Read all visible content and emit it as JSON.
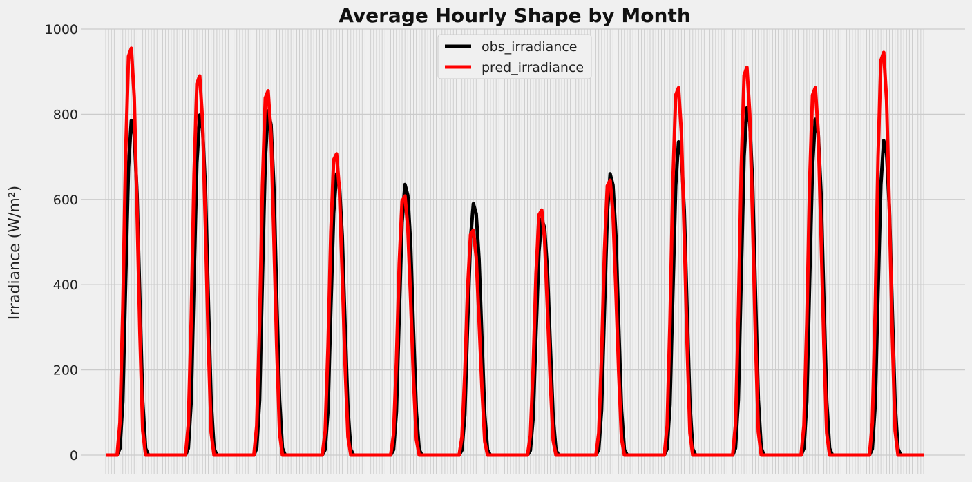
{
  "chart_data": {
    "type": "line",
    "title": "Average Hourly Shape by Month",
    "xlabel": "",
    "ylabel": "Irradiance (W/m²)",
    "ylim": [
      0,
      1000
    ],
    "yticks": [
      "0",
      "200",
      "400",
      "600",
      "800",
      "1000"
    ],
    "xticks_labels_visible": false,
    "x_points": 288,
    "grid": true,
    "legend": "top-center",
    "hours_per_month": 24,
    "months": 12,
    "series": [
      {
        "name": "obs_irradiance",
        "color": "#000000",
        "monthly_peaks": [
          785,
          798,
          808,
          660,
          635,
          590,
          555,
          660,
          735,
          815,
          788,
          738
        ]
      },
      {
        "name": "pred_irradiance",
        "color": "#ff0000",
        "monthly_peaks": [
          955,
          890,
          855,
          707,
          608,
          528,
          575,
          645,
          862,
          910,
          862,
          945
        ]
      }
    ]
  }
}
